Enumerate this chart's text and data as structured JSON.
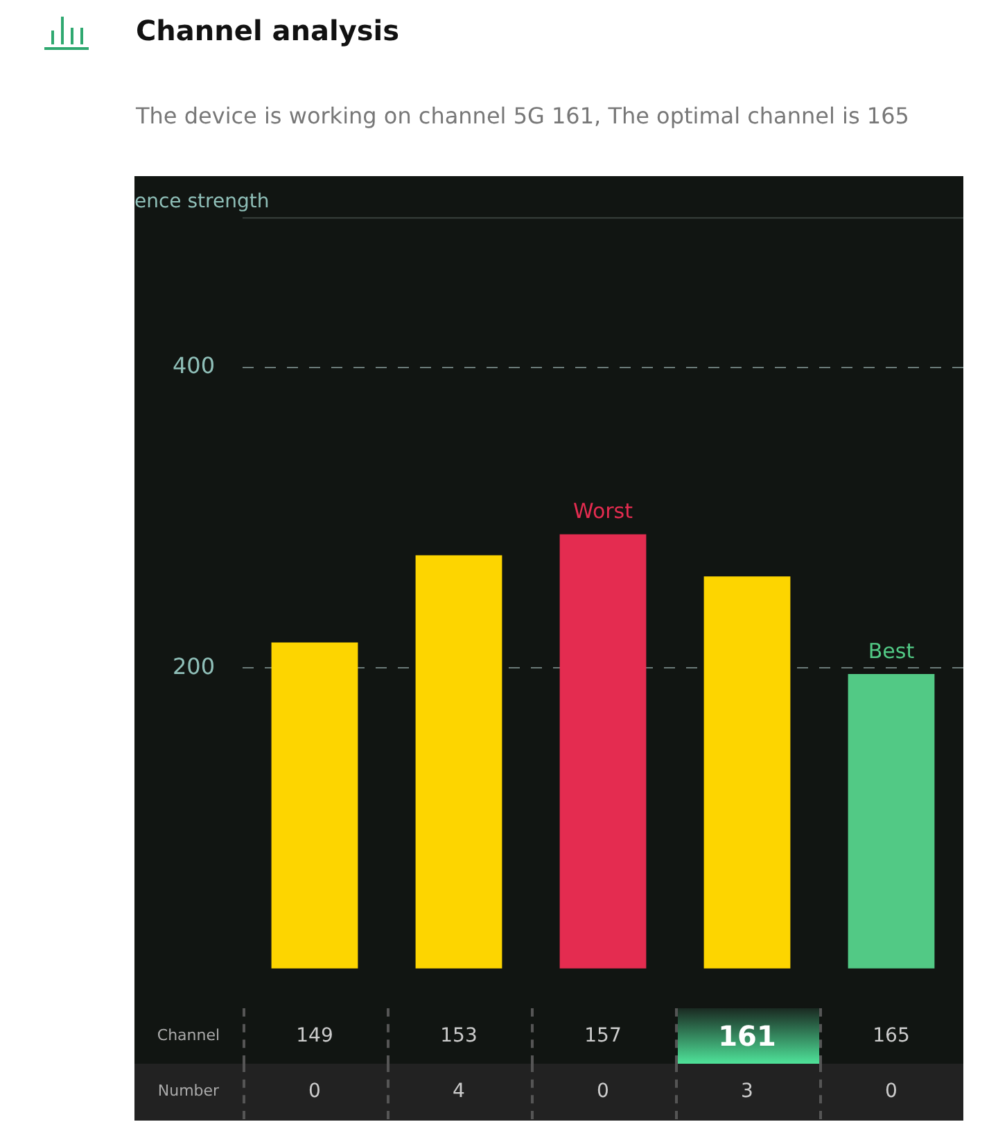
{
  "chart_data": {
    "type": "bar",
    "title": "Channel analysis",
    "subtitle": "The device is working on channel 5G 161, The optimal channel is 165",
    "ylabel": "ence strength",
    "xlabel": "Channel",
    "categories": [
      "149",
      "153",
      "157",
      "161",
      "165"
    ],
    "values": [
      217,
      275,
      289,
      261,
      196
    ],
    "colors": [
      "#fdd500",
      "#fdd500",
      "#e42c50",
      "#fdd500",
      "#52c985"
    ],
    "ylim": [
      0,
      500
    ],
    "yticks": [
      200,
      400
    ],
    "grid": "y",
    "legend": false,
    "annotations": [
      {
        "text": "Worst",
        "x": "157",
        "y": 289
      },
      {
        "text": "Best",
        "x": "165",
        "y": 196
      },
      "Number",
      "0",
      "4",
      "0",
      "3",
      "0"
    ]
  }
}
